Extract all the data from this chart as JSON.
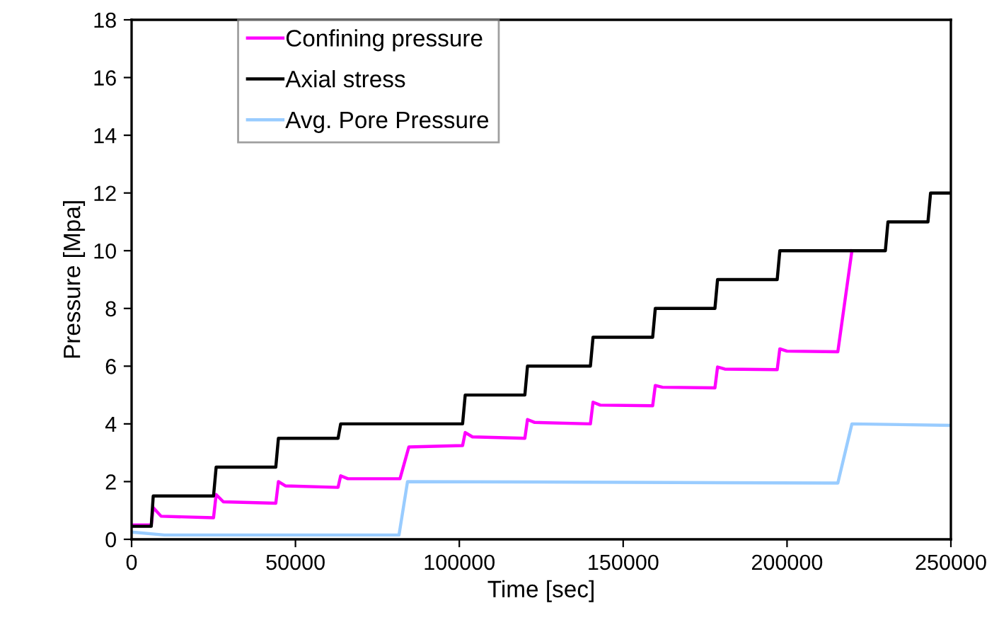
{
  "chart_data": {
    "type": "line",
    "xlabel": "Time [sec]",
    "ylabel": "Pressure [Mpa]",
    "xlim": [
      0,
      250000
    ],
    "ylim": [
      0,
      18
    ],
    "xticks": [
      0,
      50000,
      100000,
      150000,
      200000,
      250000
    ],
    "yticks": [
      0,
      2,
      4,
      6,
      8,
      10,
      12,
      14,
      16,
      18
    ],
    "grid": false,
    "legend": "top left",
    "marker": "none",
    "line_style": "solid",
    "series": [
      {
        "name": "Confining pressure",
        "color": "#ff00ff",
        "x": [
          0,
          6000,
          6600,
          9000,
          25000,
          25800,
          28000,
          44000,
          44800,
          47000,
          63000,
          63800,
          66000,
          81900,
          84600,
          101000,
          101800,
          104000,
          120000,
          120800,
          123000,
          140000,
          140800,
          143000,
          159000,
          159800,
          162000,
          178000,
          178800,
          181000,
          197000,
          197800,
          200000,
          215500,
          219800
        ],
        "values": [
          0.5,
          0.5,
          1.1,
          0.8,
          0.75,
          1.55,
          1.3,
          1.25,
          2.0,
          1.85,
          1.8,
          2.2,
          2.1,
          2.1,
          3.2,
          3.25,
          3.7,
          3.55,
          3.5,
          4.15,
          4.05,
          4.0,
          4.75,
          4.65,
          4.63,
          5.33,
          5.27,
          5.25,
          5.97,
          5.9,
          5.88,
          6.6,
          6.52,
          6.5,
          10.0
        ]
      },
      {
        "name": "Axial stress",
        "color": "#000000",
        "x": [
          0,
          6000,
          6600,
          25000,
          25800,
          44000,
          44800,
          63000,
          63800,
          101000,
          101800,
          120000,
          120800,
          140000,
          140800,
          159000,
          159800,
          178000,
          178800,
          197000,
          197800,
          230000,
          230800,
          243000,
          243800,
          250000
        ],
        "values": [
          0.45,
          0.45,
          1.5,
          1.5,
          2.5,
          2.5,
          3.5,
          3.5,
          4.0,
          4.0,
          5.0,
          5.0,
          6.0,
          6.0,
          7.0,
          7.0,
          8.0,
          8.0,
          9.0,
          9.0,
          10.0,
          10.0,
          11.0,
          11.0,
          12.0,
          12.0
        ]
      },
      {
        "name": "Avg. Pore Pressure",
        "color": "#99ccff",
        "x": [
          0,
          10000,
          81600,
          84200,
          215500,
          219800,
          250000
        ],
        "values": [
          0.25,
          0.15,
          0.15,
          2.0,
          1.95,
          4.0,
          3.95
        ]
      }
    ]
  }
}
